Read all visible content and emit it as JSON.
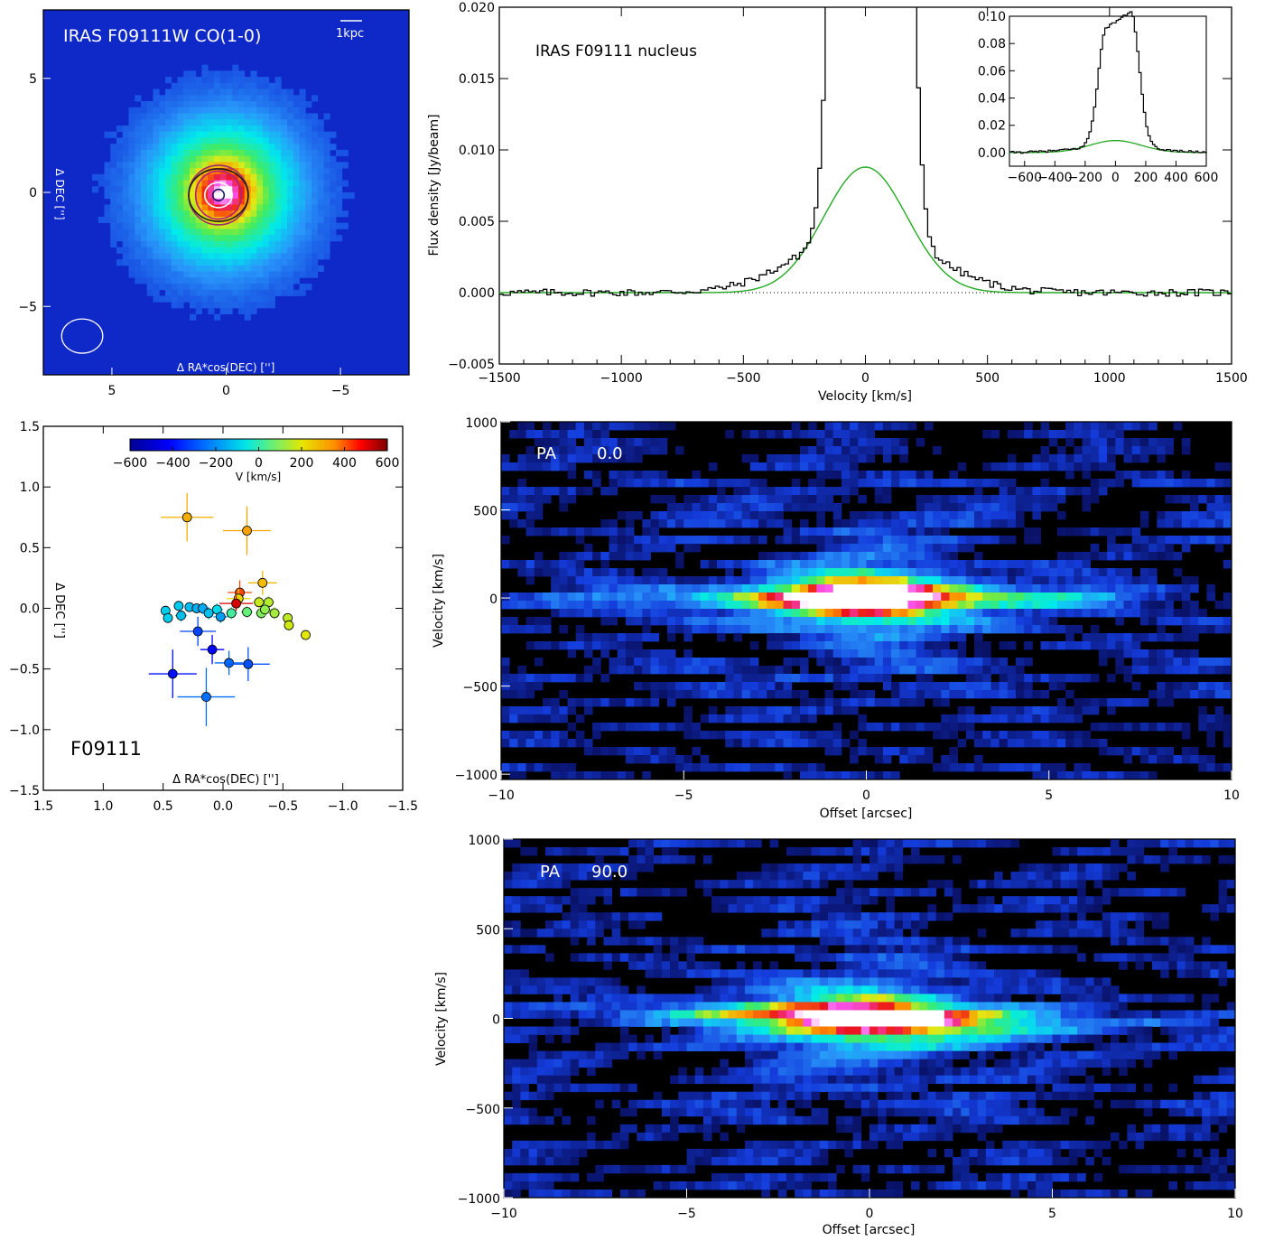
{
  "colors": {
    "model": "#22aa22",
    "spectrum": "#000000",
    "map_bg": "#0a2cc8",
    "beam": "#ffffff"
  },
  "chart_data": [
    {
      "id": "co_map",
      "type": "heatmap",
      "title": "IRAS F09111W CO(1-0)",
      "scale_label": "1kpc",
      "xlabel": "Δ RA*cos(DEC) ['']",
      "ylabel": "Δ DEC ['']",
      "xlim": [
        8,
        -8
      ],
      "ylim": [
        -8,
        8
      ],
      "x_ticks": [
        5,
        0,
        -5
      ],
      "y_ticks": [
        5,
        0,
        -5
      ],
      "colormap": "rainbow",
      "peak": [
        0.1,
        0.0
      ],
      "contours": [
        {
          "rx": 1.3,
          "ry": 1.3,
          "color": "#9b2d6a"
        },
        {
          "rx": 1.3,
          "ry": 1.15,
          "color": "#1a1a1a"
        },
        {
          "rx": 1.0,
          "ry": 1.05,
          "color": "#b0207a"
        },
        {
          "rx": 0.6,
          "ry": 0.55,
          "color": "#ffffff"
        },
        {
          "rx": 0.25,
          "ry": 0.25,
          "color": "#1a1a6a"
        }
      ],
      "beam": {
        "x": 6.3,
        "y": -6.3,
        "rx": 0.9,
        "ry": 0.75
      }
    },
    {
      "id": "nucleus_spectrum",
      "type": "line",
      "label": "IRAS F09111 nucleus",
      "xlabel": "Velocity [km/s]",
      "ylabel": "Flux density [Jy/beam]",
      "xlim": [
        -1500,
        1500
      ],
      "ylim": [
        -0.005,
        0.02
      ],
      "x_ticks": [
        -1500,
        -1000,
        -500,
        0,
        500,
        1000,
        1500
      ],
      "y_ticks": [
        -0.005,
        0.0,
        0.005,
        0.01,
        0.015,
        0.02
      ],
      "y_tick_labels": [
        "−0.005",
        "0.000",
        "0.005",
        "0.010",
        "0.015",
        "0.020"
      ],
      "spectrum": {
        "peak": 0.093,
        "center": 20,
        "flat_halfwidth": 80,
        "edge_sigma": 55,
        "noise": 0.00025
      },
      "gaussian_fit": {
        "amplitude": 0.0088,
        "center": 0,
        "sigma": 170
      },
      "inset": {
        "xlim": [
          -700,
          600
        ],
        "ylim": [
          -0.01,
          0.1
        ],
        "x_ticks": [
          -600,
          -400,
          -200,
          0,
          200,
          400,
          600
        ],
        "y_ticks": [
          0.0,
          0.02,
          0.04,
          0.06,
          0.08,
          0.1
        ],
        "y_tick_labels": [
          "0.00",
          "0.02",
          "0.04",
          "0.06",
          "0.08",
          "0.10"
        ]
      }
    },
    {
      "id": "outflow_clumps",
      "type": "scatter",
      "label": "F09111",
      "xlabel": "Δ RA*cos(DEC) ['']",
      "ylabel": "Δ DEC ['']",
      "xlim": [
        1.5,
        -1.5
      ],
      "ylim": [
        -1.5,
        1.5
      ],
      "x_ticks": [
        1.5,
        1.0,
        0.5,
        0.0,
        -0.5,
        -1.0,
        -1.5
      ],
      "x_tick_labels": [
        "1.5",
        "1.0",
        "0.5",
        "0.0",
        "−0.5",
        "−1.0",
        "−1.5"
      ],
      "y_ticks": [
        1.5,
        1.0,
        0.5,
        0.0,
        -0.5,
        -1.0,
        -1.5
      ],
      "y_tick_labels": [
        "1.5",
        "1.0",
        "0.5",
        "0.0",
        "−0.5",
        "−1.0",
        "−1.5"
      ],
      "colorbar": {
        "label": "V [km/s]",
        "range": [
          -600,
          600
        ],
        "ticks": [
          -600,
          -400,
          -200,
          0,
          200,
          400,
          600
        ],
        "tick_labels": [
          "−600",
          "−400",
          "−200",
          "0",
          "200",
          "400",
          "600"
        ]
      },
      "points": [
        {
          "x": 0.3,
          "y": 0.75,
          "v": 300,
          "ex": 0.22,
          "ey": 0.2
        },
        {
          "x": -0.2,
          "y": 0.64,
          "v": 320,
          "ex": 0.2,
          "ey": 0.2
        },
        {
          "x": -0.33,
          "y": 0.21,
          "v": 280,
          "ex": 0.12,
          "ey": 0.1
        },
        {
          "x": -0.14,
          "y": 0.13,
          "v": 420,
          "ex": 0.1,
          "ey": 0.1
        },
        {
          "x": -0.13,
          "y": 0.08,
          "v": 230,
          "ex": 0.1,
          "ey": 0.08
        },
        {
          "x": -0.11,
          "y": 0.04,
          "v": 520,
          "ex": 0.14,
          "ey": 0.06
        },
        {
          "x": 0.48,
          "y": -0.02,
          "v": -100,
          "ex": 0.04,
          "ey": 0.04
        },
        {
          "x": 0.37,
          "y": 0.02,
          "v": -110,
          "ex": 0.04,
          "ey": 0.04
        },
        {
          "x": 0.28,
          "y": 0.01,
          "v": -130,
          "ex": 0.04,
          "ey": 0.04
        },
        {
          "x": 0.22,
          "y": 0.0,
          "v": -150,
          "ex": 0.04,
          "ey": 0.04
        },
        {
          "x": 0.17,
          "y": 0.0,
          "v": -160,
          "ex": 0.05,
          "ey": 0.05
        },
        {
          "x": 0.12,
          "y": -0.04,
          "v": -120,
          "ex": 0.05,
          "ey": 0.05
        },
        {
          "x": 0.05,
          "y": -0.01,
          "v": -80,
          "ex": 0.05,
          "ey": 0.05
        },
        {
          "x": 0.02,
          "y": -0.07,
          "v": -180,
          "ex": 0.06,
          "ey": 0.05
        },
        {
          "x": -0.07,
          "y": -0.04,
          "v": 20,
          "ex": 0.05,
          "ey": 0.05
        },
        {
          "x": -0.2,
          "y": -0.03,
          "v": 60,
          "ex": 0.05,
          "ey": 0.05
        },
        {
          "x": -0.32,
          "y": -0.04,
          "v": 90,
          "ex": 0.05,
          "ey": 0.05
        },
        {
          "x": -0.3,
          "y": 0.05,
          "v": 170,
          "ex": 0.05,
          "ey": 0.05
        },
        {
          "x": -0.38,
          "y": 0.05,
          "v": 150,
          "ex": 0.05,
          "ey": 0.05
        },
        {
          "x": -0.35,
          "y": -0.01,
          "v": 110,
          "ex": 0.05,
          "ey": 0.05
        },
        {
          "x": -0.43,
          "y": -0.04,
          "v": 130,
          "ex": 0.05,
          "ey": 0.05
        },
        {
          "x": -0.54,
          "y": -0.08,
          "v": 160,
          "ex": 0.04,
          "ey": 0.04
        },
        {
          "x": -0.55,
          "y": -0.14,
          "v": 180,
          "ex": 0.04,
          "ey": 0.04
        },
        {
          "x": -0.69,
          "y": -0.22,
          "v": 200,
          "ex": 0.04,
          "ey": 0.04
        },
        {
          "x": 0.46,
          "y": -0.08,
          "v": -100,
          "ex": 0.04,
          "ey": 0.04
        },
        {
          "x": 0.35,
          "y": -0.06,
          "v": -120,
          "ex": 0.05,
          "ey": 0.05
        },
        {
          "x": 0.21,
          "y": -0.19,
          "v": -320,
          "ex": 0.15,
          "ey": 0.12
        },
        {
          "x": 0.09,
          "y": -0.34,
          "v": -420,
          "ex": 0.1,
          "ey": 0.12
        },
        {
          "x": -0.05,
          "y": -0.45,
          "v": -260,
          "ex": 0.12,
          "ey": 0.1
        },
        {
          "x": -0.21,
          "y": -0.46,
          "v": -300,
          "ex": 0.18,
          "ey": 0.14
        },
        {
          "x": 0.42,
          "y": -0.54,
          "v": -400,
          "ex": 0.2,
          "ey": 0.2
        },
        {
          "x": 0.14,
          "y": -0.73,
          "v": -250,
          "ex": 0.24,
          "ey": 0.24
        }
      ]
    },
    {
      "id": "pv_pa0",
      "type": "heatmap",
      "label": "PA",
      "pa_value": "0.0",
      "xlabel": "Offset [arcsec]",
      "ylabel": "Velocity [km/s]",
      "xlim": [
        -10,
        10
      ],
      "ylim": [
        -1030,
        1000
      ],
      "x_ticks": [
        -10,
        -5,
        0,
        5,
        10
      ],
      "x_tick_labels": [
        "−10",
        "−5",
        "0",
        "5",
        "10"
      ],
      "y_ticks": [
        -1000,
        -500,
        0,
        500,
        1000
      ],
      "y_tick_labels": [
        "−1000",
        "−500",
        "0",
        "500",
        "1000"
      ],
      "colormap": "rainbow",
      "tilt": 0
    },
    {
      "id": "pv_pa90",
      "type": "heatmap",
      "label": "PA",
      "pa_value": "90.0",
      "xlabel": "Offset [arcsec]",
      "ylabel": "Velocity [km/s]",
      "xlim": [
        -10,
        10
      ],
      "ylim": [
        -1000,
        1000
      ],
      "x_ticks": [
        -10,
        -5,
        0,
        5,
        10
      ],
      "x_tick_labels": [
        "−10",
        "−5",
        "0",
        "5",
        "10"
      ],
      "y_ticks": [
        -1000,
        -500,
        0,
        500,
        1000
      ],
      "y_tick_labels": [
        "−1000",
        "−500",
        "0",
        "500",
        "1000"
      ],
      "colormap": "rainbow",
      "tilt": -5
    }
  ]
}
